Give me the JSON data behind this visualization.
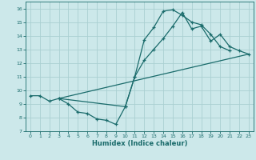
{
  "xlabel": "Humidex (Indice chaleur)",
  "bg_color": "#cce8ea",
  "grid_color": "#aacfd2",
  "line_color": "#1a6b6b",
  "xlim": [
    -0.5,
    23.5
  ],
  "ylim": [
    7.0,
    16.5
  ],
  "xticks": [
    0,
    1,
    2,
    3,
    4,
    5,
    6,
    7,
    8,
    9,
    10,
    11,
    12,
    13,
    14,
    15,
    16,
    17,
    18,
    19,
    20,
    21,
    22,
    23
  ],
  "yticks": [
    7,
    8,
    9,
    10,
    11,
    12,
    13,
    14,
    15,
    16
  ],
  "curve1_x": [
    0,
    1,
    2,
    3,
    4,
    5,
    6,
    7,
    8,
    9,
    10,
    11,
    12,
    13,
    14,
    15,
    16,
    17,
    18,
    19,
    20,
    21
  ],
  "curve1_y": [
    9.6,
    9.6,
    9.2,
    9.4,
    9.0,
    8.4,
    8.3,
    7.9,
    7.8,
    7.5,
    8.8,
    11.0,
    13.7,
    14.6,
    15.8,
    15.9,
    15.5,
    15.0,
    14.8,
    14.1,
    13.2,
    12.9
  ],
  "curve2_x": [
    3,
    10,
    11,
    12,
    13,
    14,
    15,
    16,
    17,
    18,
    19,
    20,
    21,
    22,
    23
  ],
  "curve2_y": [
    9.4,
    8.8,
    11.0,
    12.2,
    13.0,
    13.8,
    14.7,
    15.7,
    14.5,
    14.7,
    13.6,
    14.1,
    13.2,
    12.9,
    12.65
  ],
  "curve3_x": [
    3,
    23
  ],
  "curve3_y": [
    9.4,
    12.65
  ]
}
